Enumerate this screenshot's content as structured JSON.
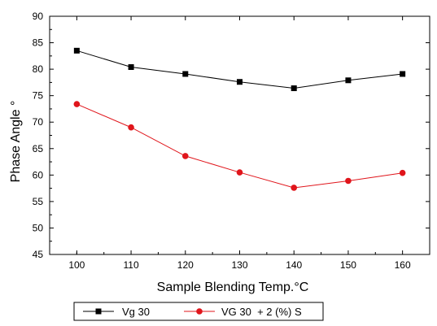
{
  "chart_data": {
    "type": "line",
    "title": "",
    "xlabel": "Sample Blending Temp.°C",
    "ylabel": "Phase Angle °",
    "x": [
      100,
      110,
      120,
      130,
      140,
      150,
      160
    ],
    "xticks": [
      "100",
      "110",
      "120",
      "130",
      "140",
      "150",
      "160"
    ],
    "xlim": [
      95,
      165
    ],
    "ylim": [
      45,
      90
    ],
    "yticks": [
      "45",
      "50",
      "55",
      "60",
      "65",
      "70",
      "75",
      "80",
      "85",
      "90"
    ],
    "grid": false,
    "legend_position": "bottom",
    "series": [
      {
        "name": "Vg 30",
        "values": [
          83.5,
          80.4,
          79.1,
          77.6,
          76.4,
          77.9,
          79.1
        ],
        "color": "#000000",
        "marker": "square"
      },
      {
        "name": "VG 30  + 2 (%) S",
        "values": [
          73.4,
          69.0,
          63.6,
          60.5,
          57.6,
          58.9,
          60.4
        ],
        "color": "#e0151b",
        "marker": "circle"
      }
    ]
  }
}
